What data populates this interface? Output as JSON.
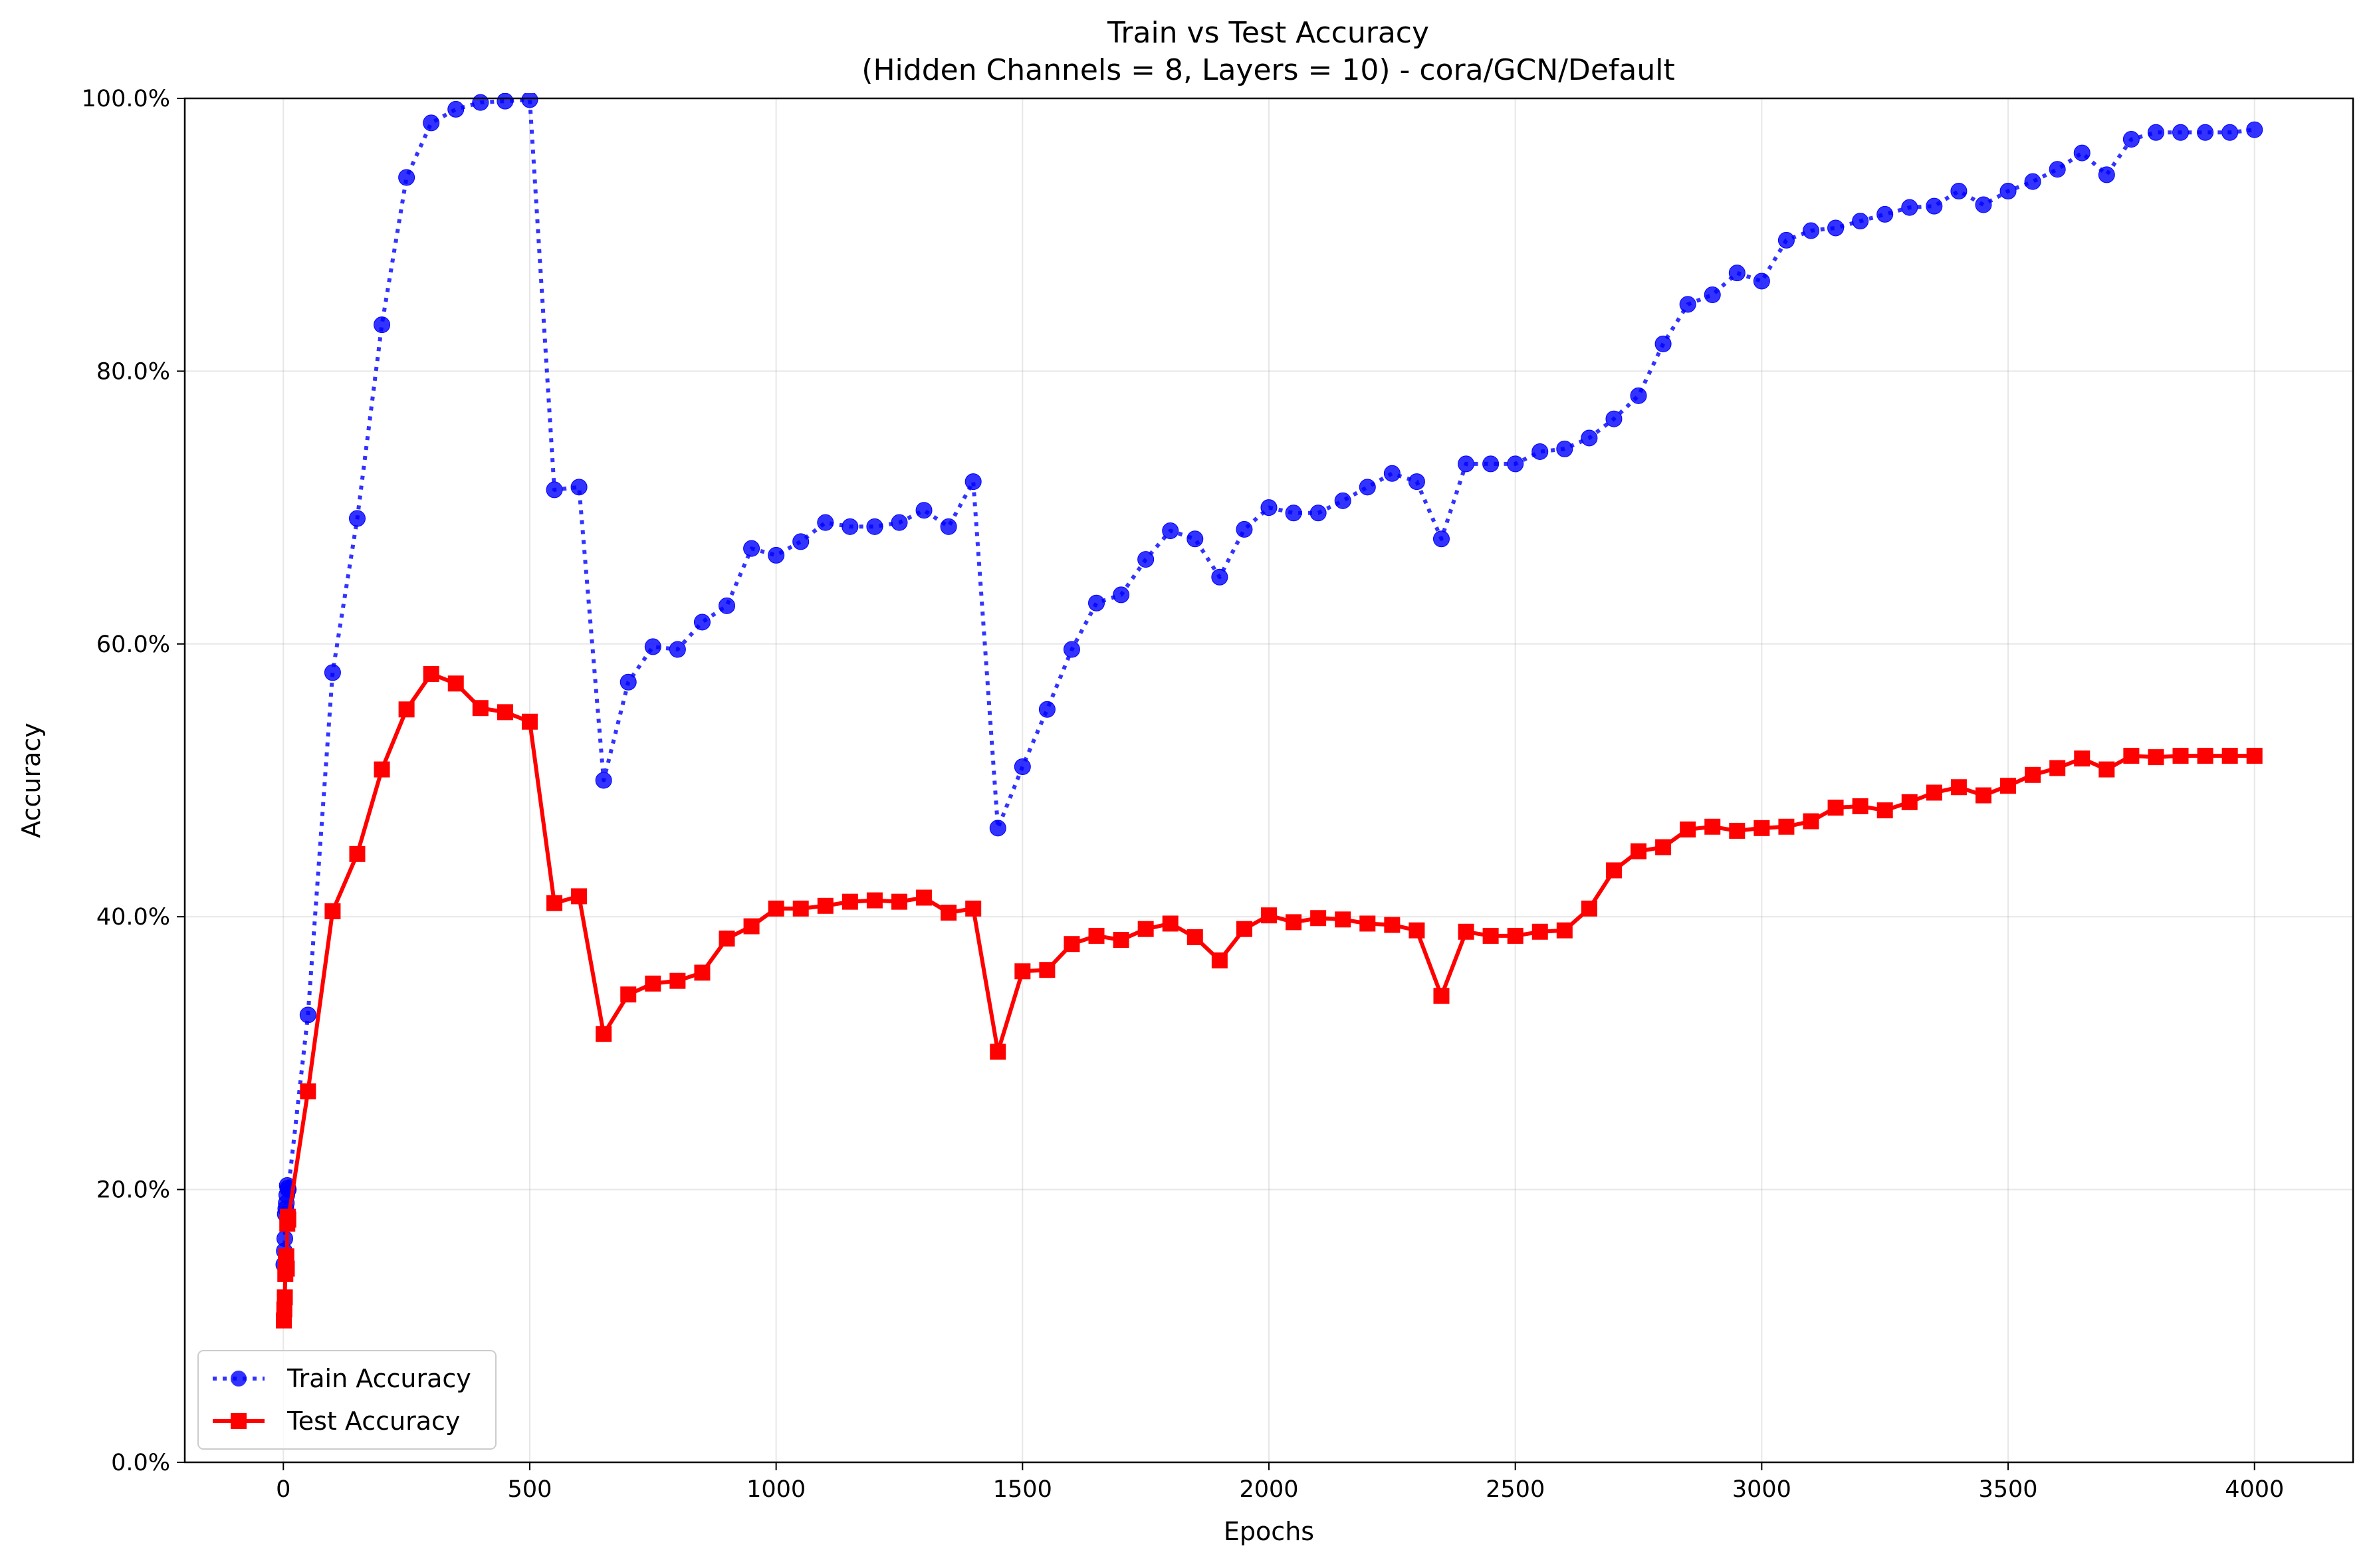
{
  "chart_data": {
    "type": "line",
    "title": "Train vs Test Accuracy",
    "subtitle": "(Hidden Channels = 8, Layers = 10) - cora/GCN/Default",
    "xlabel": "Epochs",
    "ylabel": "Accuracy",
    "xlim": [
      -200,
      4200
    ],
    "ylim": [
      0,
      100
    ],
    "x_ticks": [
      0,
      500,
      1000,
      1500,
      2000,
      2500,
      3000,
      3500,
      4000
    ],
    "x_tick_labels": [
      "0",
      "500",
      "1000",
      "1500",
      "2000",
      "2500",
      "3000",
      "3500",
      "4000"
    ],
    "y_ticks": [
      0,
      20,
      40,
      60,
      80,
      100
    ],
    "y_tick_labels": [
      "0.0%",
      "20.0%",
      "40.0%",
      "60.0%",
      "80.0%",
      "100.0%"
    ],
    "grid": true,
    "legend_position": "lower-left",
    "series": [
      {
        "name": "Train Accuracy",
        "color": "#0000ff",
        "line_style": "dotted",
        "marker": "circle",
        "x": [
          1,
          2,
          3,
          4,
          5,
          6,
          7,
          8,
          9,
          10,
          50,
          100,
          150,
          200,
          250,
          300,
          350,
          400,
          450,
          500,
          550,
          600,
          650,
          700,
          750,
          800,
          850,
          900,
          950,
          1000,
          1050,
          1100,
          1150,
          1200,
          1250,
          1300,
          1350,
          1400,
          1450,
          1500,
          1550,
          1600,
          1650,
          1700,
          1750,
          1800,
          1850,
          1900,
          1950,
          2000,
          2050,
          2100,
          2150,
          2200,
          2250,
          2300,
          2350,
          2400,
          2450,
          2500,
          2550,
          2600,
          2650,
          2700,
          2750,
          2800,
          2850,
          2900,
          2950,
          3000,
          3050,
          3100,
          3150,
          3200,
          3250,
          3300,
          3350,
          3400,
          3450,
          3500,
          3550,
          3600,
          3650,
          3700,
          3750,
          3800,
          3850,
          3900,
          3950,
          4000
        ],
        "y": [
          14.5,
          15.5,
          16.4,
          18.2,
          18.6,
          19.0,
          19.6,
          20.3,
          20.1,
          20.0,
          32.8,
          57.9,
          69.2,
          83.4,
          94.2,
          98.2,
          99.2,
          99.7,
          99.8,
          99.9,
          71.3,
          71.5,
          50.0,
          57.2,
          59.8,
          59.6,
          61.6,
          62.8,
          67.0,
          66.5,
          67.5,
          68.9,
          68.6,
          68.6,
          68.9,
          69.8,
          68.6,
          71.9,
          46.5,
          51.0,
          55.2,
          59.6,
          63.0,
          63.6,
          66.2,
          68.3,
          67.7,
          64.9,
          68.4,
          70.0,
          69.6,
          69.6,
          70.5,
          71.5,
          72.5,
          71.9,
          67.7,
          73.2,
          73.2,
          73.2,
          74.1,
          74.3,
          75.1,
          76.5,
          78.2,
          82.0,
          84.9,
          85.6,
          87.2,
          86.6,
          89.6,
          90.3,
          90.5,
          91.0,
          91.5,
          92.0,
          92.1,
          93.2,
          92.2,
          93.2,
          93.9,
          94.8,
          96.0,
          94.4,
          97.0,
          97.5,
          97.5,
          97.5,
          97.5,
          97.7
        ]
      },
      {
        "name": "Test Accuracy",
        "color": "#ff0000",
        "line_style": "solid",
        "marker": "square",
        "x": [
          1,
          2,
          3,
          4,
          5,
          6,
          7,
          8,
          9,
          10,
          50,
          100,
          150,
          200,
          250,
          300,
          350,
          400,
          450,
          500,
          550,
          600,
          650,
          700,
          750,
          800,
          850,
          900,
          950,
          1000,
          1050,
          1100,
          1150,
          1200,
          1250,
          1300,
          1350,
          1400,
          1450,
          1500,
          1550,
          1600,
          1650,
          1700,
          1750,
          1800,
          1850,
          1900,
          1950,
          2000,
          2050,
          2100,
          2150,
          2200,
          2250,
          2300,
          2350,
          2400,
          2450,
          2500,
          2550,
          2600,
          2650,
          2700,
          2750,
          2800,
          2850,
          2900,
          2950,
          3000,
          3050,
          3100,
          3150,
          3200,
          3250,
          3300,
          3350,
          3400,
          3450,
          3500,
          3550,
          3600,
          3650,
          3700,
          3750,
          3800,
          3850,
          3900,
          3950,
          4000
        ],
        "y": [
          10.4,
          11.2,
          12.1,
          13.8,
          14.6,
          15.1,
          14.2,
          17.5,
          18.0,
          17.8,
          27.2,
          40.4,
          44.6,
          50.8,
          55.2,
          57.8,
          57.1,
          55.3,
          55.0,
          54.3,
          41.0,
          41.5,
          31.4,
          34.3,
          35.1,
          35.3,
          35.9,
          38.4,
          39.3,
          40.6,
          40.6,
          40.8,
          41.1,
          41.2,
          41.1,
          41.4,
          40.3,
          40.6,
          30.1,
          36.0,
          36.1,
          38.0,
          38.6,
          38.3,
          39.1,
          39.5,
          38.5,
          36.8,
          39.1,
          40.1,
          39.6,
          39.9,
          39.8,
          39.5,
          39.4,
          39.0,
          34.2,
          38.9,
          38.6,
          38.6,
          38.9,
          39.0,
          40.6,
          43.4,
          44.8,
          45.1,
          46.4,
          46.6,
          46.3,
          46.5,
          46.6,
          47.0,
          48.0,
          48.1,
          47.8,
          48.4,
          49.1,
          49.5,
          48.9,
          49.6,
          50.4,
          50.9,
          51.6,
          50.8,
          51.8,
          51.7,
          51.8,
          51.8,
          51.8,
          51.8
        ]
      }
    ]
  }
}
